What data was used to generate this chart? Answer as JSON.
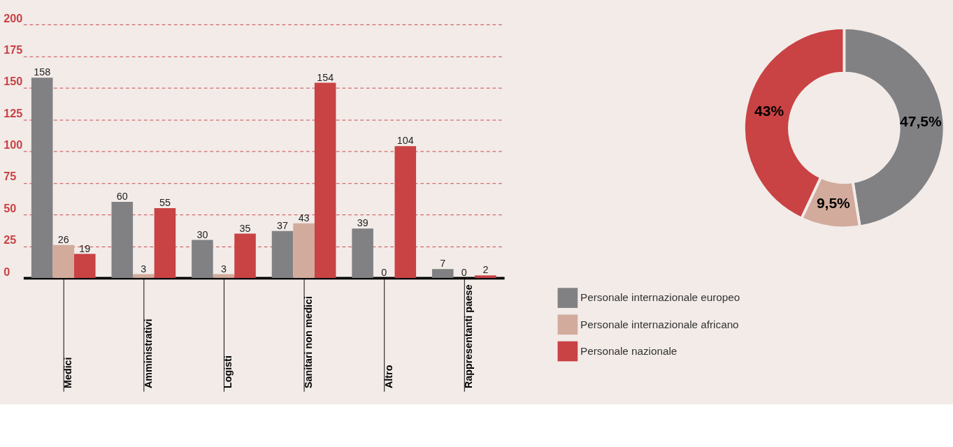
{
  "chart_data": [
    {
      "type": "bar",
      "categories": [
        "Medici",
        "Amministrativi",
        "Logisti",
        "Sanitari non medici",
        "Altro",
        "Rappresentanti paese"
      ],
      "series": [
        {
          "name": "Personale internazionale europeo",
          "color": "#818184",
          "values": [
            158,
            60,
            30,
            37,
            39,
            7
          ]
        },
        {
          "name": "Personale internazionale africano",
          "color": "#d2ab9c",
          "values": [
            26,
            3,
            3,
            43,
            0,
            0
          ]
        },
        {
          "name": "Personale nazionale",
          "color": "#c94244",
          "values": [
            19,
            55,
            35,
            154,
            104,
            2
          ]
        }
      ],
      "ylim": [
        0,
        200
      ],
      "yticks": [
        0,
        25,
        50,
        75,
        100,
        125,
        150,
        175,
        200
      ],
      "grid": "y",
      "data_labels": true,
      "legend": "right"
    },
    {
      "type": "donut",
      "categories": [
        null,
        null,
        null
      ],
      "values": [
        47.5,
        9.5,
        43
      ],
      "colors": [
        "#818184",
        "#d2ab9c",
        "#c94244"
      ],
      "value_labels": [
        "47,5%",
        "9,5%",
        "43%"
      ]
    }
  ]
}
